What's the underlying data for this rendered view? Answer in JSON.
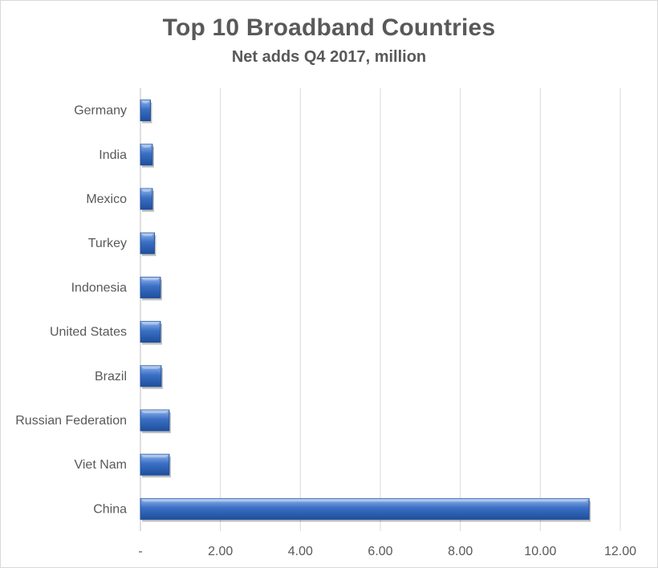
{
  "chart_data": {
    "type": "bar",
    "orientation": "horizontal",
    "title": "Top 10 Broadband Countries",
    "subtitle": "Net adds Q4 2017, million",
    "categories": [
      "Germany",
      "India",
      "Mexico",
      "Turkey",
      "Indonesia",
      "United States",
      "Brazil",
      "Russian Federation",
      "Viet Nam",
      "China"
    ],
    "values": [
      0.25,
      0.3,
      0.3,
      0.35,
      0.5,
      0.5,
      0.52,
      0.72,
      0.72,
      11.22
    ],
    "xlim": [
      0,
      12
    ],
    "x_ticks": [
      0,
      2,
      4,
      6,
      8,
      10,
      12
    ],
    "x_tick_labels": [
      "-",
      "2.00",
      "4.00",
      "6.00",
      "8.00",
      "10.00",
      "12.00"
    ],
    "grid": true,
    "legend": "none",
    "bar_color": "#3a6fc4"
  }
}
